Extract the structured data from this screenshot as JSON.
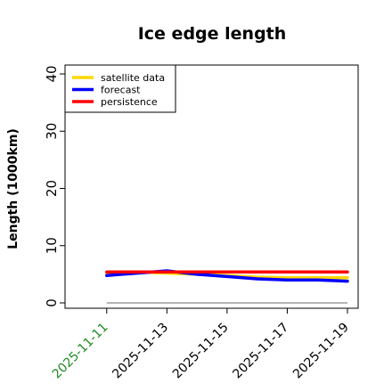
{
  "chart_data": {
    "type": "line",
    "title": "Ice edge length",
    "ylabel": "Length (1000km)",
    "xlabel": "",
    "x": [
      "2025-11-11",
      "2025-11-12",
      "2025-11-13",
      "2025-11-14",
      "2025-11-15",
      "2025-11-16",
      "2025-11-17",
      "2025-11-18",
      "2025-11-19"
    ],
    "x_tick_labels": [
      "2025-11-11",
      "2025-11-13",
      "2025-11-15",
      "2025-11-17",
      "2025-11-19"
    ],
    "x_tick_colors": [
      "#228B22",
      "#000000",
      "#000000",
      "#000000",
      "#000000"
    ],
    "y_ticks": [
      0,
      10,
      20,
      30,
      40
    ],
    "ylim": [
      -1,
      41
    ],
    "xlim": [
      "2025-11-10",
      "2025-11-19"
    ],
    "grid": false,
    "legend_position": "top-left",
    "series": [
      {
        "name": "satellite data",
        "color": "#FFD700",
        "values": [
          5.0,
          5.4,
          5.2,
          5.0,
          4.8,
          4.5,
          4.4,
          4.4,
          4.4
        ]
      },
      {
        "name": "forecast",
        "color": "#0000FF",
        "values": [
          4.8,
          5.2,
          5.6,
          5.0,
          4.6,
          4.2,
          4.0,
          4.0,
          3.8
        ]
      },
      {
        "name": "persistence",
        "color": "#FF0000",
        "values": [
          5.4,
          5.4,
          5.4,
          5.4,
          5.4,
          5.4,
          5.4,
          5.4,
          5.4
        ]
      }
    ],
    "zero_line_color": "#888888"
  }
}
